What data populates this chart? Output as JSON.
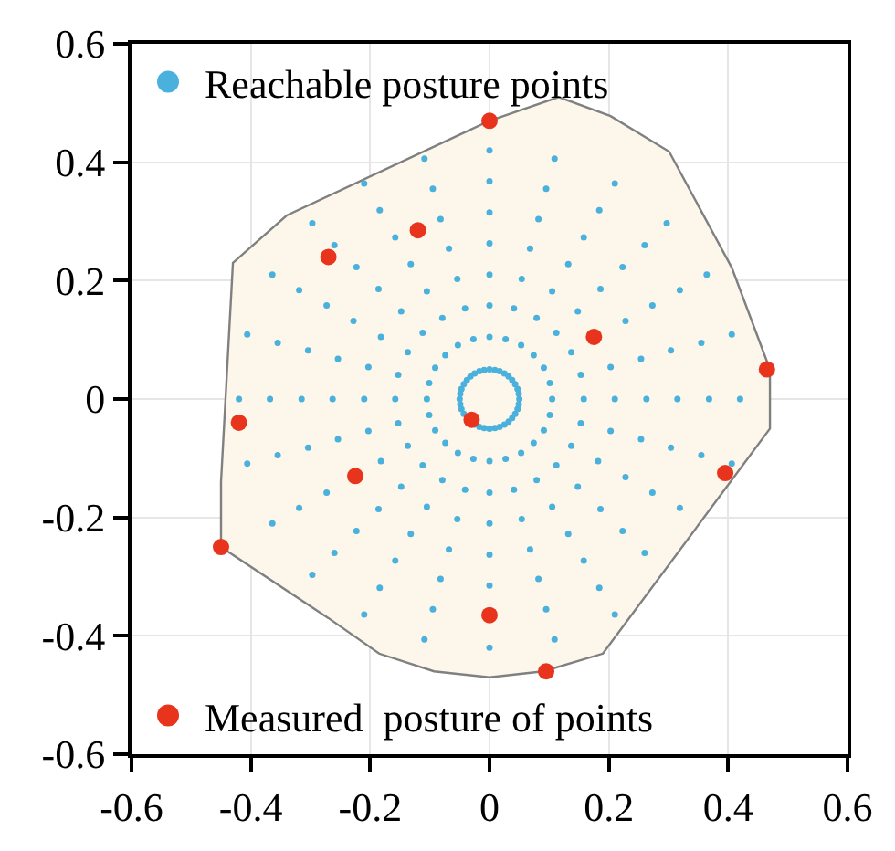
{
  "chart_data": {
    "type": "scatter",
    "marker": "circle",
    "grid": true,
    "legend": "left",
    "xlim": [
      -0.6,
      0.6
    ],
    "ylim": [
      -0.6,
      0.6
    ],
    "xticks": [
      -0.6,
      -0.4,
      -0.2,
      0,
      0.2,
      0.4,
      0.6
    ],
    "yticks": [
      -0.6,
      -0.4,
      -0.2,
      0,
      0.2,
      0.4,
      0.6
    ],
    "series": [
      {
        "type": "area",
        "marker": "none",
        "color": "#fcf7ea",
        "x": [
          0,
          0.116,
          0.203,
          0.301,
          0.406,
          0.47,
          0.47,
          0.19,
          0.09,
          0,
          -0.093,
          -0.185,
          -0.27,
          -0.45,
          -0.45,
          -0.43,
          -0.34,
          0
        ],
        "values": [
          0.47,
          0.51,
          0.478,
          0.418,
          0.222,
          0.05,
          -0.05,
          -0.43,
          -0.46,
          -0.47,
          -0.46,
          -0.43,
          -0.37,
          -0.25,
          -0.14,
          0.23,
          0.31,
          0.47
        ]
      },
      {
        "name": "Reachable posture points",
        "color": "#4ab0dc",
        "x": [
          0.05,
          0.049,
          0.047,
          0.043,
          0.038,
          0.032,
          0.025,
          0.017,
          0.009,
          0,
          -0.009,
          -0.017,
          -0.025,
          -0.032,
          -0.038,
          -0.043,
          -0.047,
          -0.049,
          -0.05,
          -0.049,
          -0.047,
          -0.043,
          -0.025,
          -0.017,
          -0.009,
          0,
          0.009,
          0.017,
          0.025,
          0.032,
          0.038,
          0.043,
          0.047,
          0.049,
          0.105,
          0.101,
          0.091,
          0.074,
          0.053,
          0.027,
          0,
          -0.027,
          -0.053,
          -0.074,
          -0.091,
          -0.101,
          -0.105,
          -0.101,
          -0.091,
          -0.074,
          -0.053,
          -0.027,
          0,
          0.027,
          0.053,
          0.074,
          0.091,
          0.101,
          0.158,
          0.153,
          0.137,
          0.112,
          0.079,
          0.041,
          0,
          -0.041,
          -0.079,
          -0.112,
          -0.137,
          -0.153,
          -0.158,
          -0.153,
          -0.137,
          -0.112,
          -0.079,
          -0.041,
          0,
          0.041,
          0.079,
          0.112,
          0.137,
          0.153,
          0.21,
          0.203,
          0.148,
          0.105,
          0.054,
          0,
          -0.054,
          -0.105,
          -0.148,
          -0.182,
          -0.203,
          -0.21,
          -0.203,
          -0.182,
          -0.148,
          -0.105,
          -0.054,
          0,
          0.054,
          0.105,
          0.148,
          0.182,
          0.203,
          0.263,
          0.254,
          0.228,
          0.186,
          0.132,
          0.068,
          0,
          -0.068,
          -0.132,
          -0.186,
          -0.228,
          -0.254,
          -0.263,
          -0.254,
          -0.186,
          -0.132,
          -0.068,
          0,
          0.068,
          0.132,
          0.186,
          0.228,
          0.254,
          0.315,
          0.304,
          0.273,
          0.223,
          0.158,
          0.082,
          0,
          -0.082,
          -0.158,
          -0.223,
          -0.273,
          -0.304,
          -0.315,
          -0.304,
          -0.273,
          -0.223,
          -0.158,
          -0.082,
          0,
          0.082,
          0.158,
          0.223,
          0.273,
          0.304,
          0.368,
          0.355,
          0.319,
          0.26,
          0.184,
          0.095,
          0,
          -0.095,
          -0.184,
          -0.26,
          -0.319,
          -0.355,
          -0.368,
          -0.355,
          -0.319,
          -0.26,
          -0.184,
          -0.095,
          0.095,
          0.184,
          0.26,
          0.319,
          0.355,
          0.42,
          0.406,
          0.364,
          0.297,
          0.21,
          0.109,
          0,
          -0.109,
          -0.21,
          -0.297,
          -0.364,
          -0.406,
          -0.42,
          -0.406,
          -0.364,
          -0.297,
          -0.21,
          -0.109,
          0,
          0.109,
          0.21,
          0.406
        ],
        "values": [
          0,
          0.009,
          0.017,
          0.025,
          0.032,
          0.038,
          0.043,
          0.047,
          0.049,
          0.05,
          0.049,
          0.047,
          0.043,
          0.038,
          0.032,
          0.025,
          0.017,
          0.009,
          0,
          -0.009,
          -0.017,
          -0.025,
          -0.043,
          -0.047,
          -0.049,
          -0.05,
          -0.049,
          -0.047,
          -0.043,
          -0.038,
          -0.032,
          -0.025,
          -0.017,
          -0.009,
          0,
          0.027,
          0.053,
          0.074,
          0.091,
          0.101,
          0.105,
          0.101,
          0.091,
          0.074,
          0.053,
          0.027,
          0,
          -0.027,
          -0.053,
          -0.074,
          -0.091,
          -0.101,
          -0.105,
          -0.101,
          -0.091,
          -0.074,
          -0.053,
          -0.027,
          0,
          0.041,
          0.079,
          0.112,
          0.137,
          0.153,
          0.158,
          0.153,
          0.137,
          0.112,
          0.079,
          0.041,
          0,
          -0.041,
          -0.079,
          -0.112,
          -0.137,
          -0.153,
          -0.158,
          -0.153,
          -0.137,
          -0.112,
          -0.079,
          -0.041,
          0,
          0.054,
          0.148,
          0.182,
          0.203,
          0.21,
          0.203,
          0.182,
          0.148,
          0.105,
          0.054,
          0,
          -0.054,
          -0.105,
          -0.148,
          -0.182,
          -0.203,
          -0.21,
          -0.203,
          -0.182,
          -0.148,
          -0.105,
          -0.054,
          0,
          0.068,
          0.132,
          0.186,
          0.228,
          0.254,
          0.263,
          0.254,
          0.228,
          0.186,
          0.132,
          0.068,
          0,
          -0.068,
          -0.186,
          -0.228,
          -0.254,
          -0.263,
          -0.254,
          -0.228,
          -0.186,
          -0.132,
          -0.068,
          0,
          0.082,
          0.158,
          0.223,
          0.273,
          0.304,
          0.315,
          0.304,
          0.273,
          0.223,
          0.158,
          0.082,
          0,
          -0.082,
          -0.158,
          -0.223,
          -0.273,
          -0.304,
          -0.315,
          -0.304,
          -0.273,
          -0.223,
          -0.158,
          -0.082,
          0,
          0.095,
          0.184,
          0.26,
          0.319,
          0.355,
          0.368,
          0.355,
          0.319,
          0.26,
          0.184,
          0.095,
          0,
          -0.095,
          -0.184,
          -0.26,
          -0.319,
          -0.355,
          -0.355,
          -0.319,
          -0.26,
          -0.184,
          -0.095,
          0,
          0.109,
          0.21,
          0.297,
          0.364,
          0.406,
          0.42,
          0.406,
          0.364,
          0.297,
          0.21,
          0.109,
          0,
          -0.109,
          -0.21,
          -0.297,
          -0.364,
          -0.406,
          -0.42,
          -0.406,
          -0.364,
          -0.109
        ]
      },
      {
        "name": "Measured  posture of points",
        "color": "#e8341c",
        "x": [
          0,
          -0.12,
          -0.27,
          0.175,
          0.465,
          -0.42,
          -0.03,
          -0.225,
          0.395,
          -0.45,
          0,
          0.095
        ],
        "values": [
          0.47,
          0.285,
          0.24,
          0.105,
          0.05,
          -0.04,
          -0.035,
          -0.13,
          -0.125,
          -0.25,
          -0.365,
          -0.46
        ]
      }
    ]
  }
}
